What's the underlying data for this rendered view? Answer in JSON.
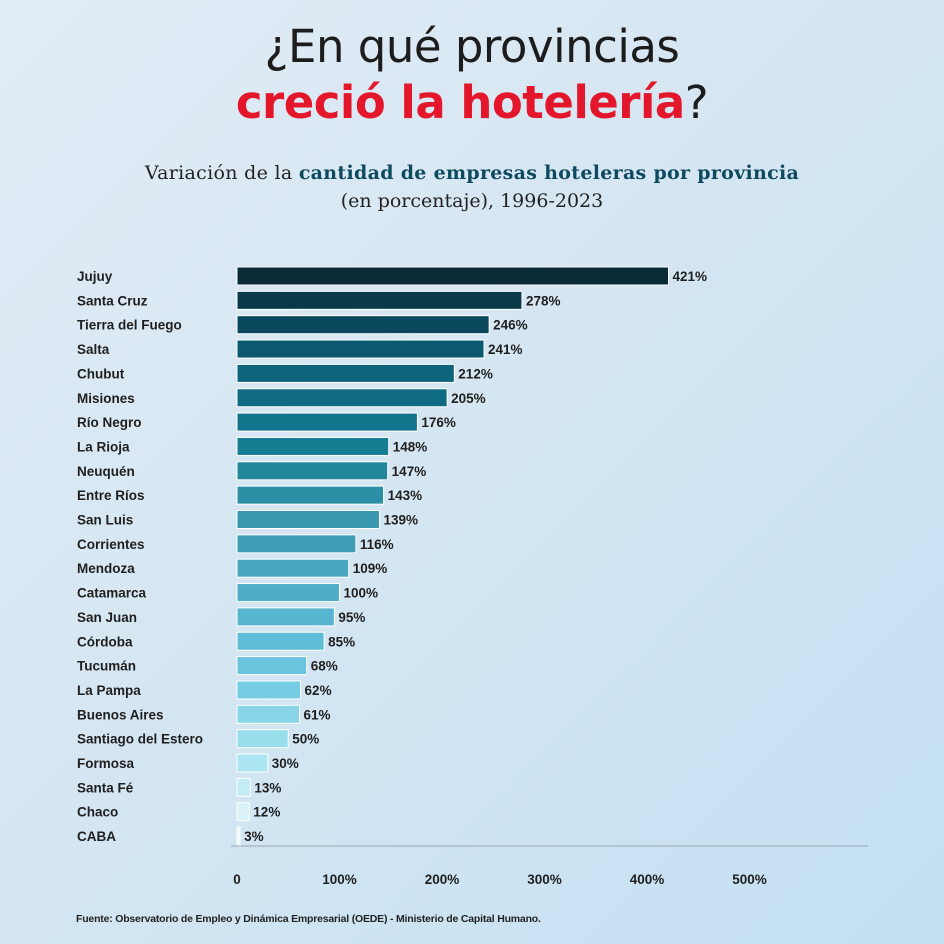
{
  "title": {
    "line1": "¿En qué provincias",
    "line2_highlight": "creció la hotelería",
    "line2_suffix": "?"
  },
  "subtitle": {
    "line1_prefix": "Variación de la ",
    "line1_highlight": "cantidad de empresas hoteleras por provincia",
    "line2": "(en porcentaje), 1996-2023"
  },
  "chart_data": {
    "type": "bar",
    "orientation": "horizontal",
    "categories": [
      "Jujuy",
      "Santa Cruz",
      "Tierra del Fuego",
      "Salta",
      "Chubut",
      "Misiones",
      "Río Negro",
      "La Rioja",
      "Neuquén",
      "Entre Ríos",
      "San Luis",
      "Corrientes",
      "Mendoza",
      "Catamarca",
      "San Juan",
      "Córdoba",
      "Tucumán",
      "La Pampa",
      "Buenos Aires",
      "Santiago del Estero",
      "Formosa",
      "Santa Fé",
      "Chaco",
      "CABA"
    ],
    "values": [
      421,
      278,
      246,
      241,
      212,
      205,
      176,
      148,
      147,
      143,
      139,
      116,
      109,
      100,
      95,
      85,
      68,
      62,
      61,
      50,
      30,
      13,
      12,
      3
    ],
    "data_labels": [
      "421%",
      "278%",
      "246%",
      "241%",
      "212%",
      "205%",
      "176%",
      "148%",
      "147%",
      "143%",
      "139%",
      "116%",
      "109%",
      "100%",
      "95%",
      "85%",
      "68%",
      "62%",
      "61%",
      "50%",
      "30%",
      "13%",
      "12%",
      "3%"
    ],
    "xlim": [
      0,
      600
    ],
    "x_ticks": [
      0,
      100,
      200,
      300,
      400,
      500
    ],
    "x_tick_labels": [
      "0",
      "100%",
      "200%",
      "300%",
      "400%",
      "500%"
    ],
    "grid": false
  },
  "colors": {
    "title_highlight": "#e4162b",
    "subtitle_highlight": "#0e4a5f",
    "bar_gradient": [
      "#092a36",
      "#0b5d76",
      "#12798f",
      "#3797ae",
      "#51aecb",
      "#6cc8e0",
      "#a6e4f1",
      "#eff9fc"
    ]
  },
  "source": "Fuente: Observatorio de Empleo y Dinámica Empresarial (OEDE) - Ministerio de Capital Humano."
}
